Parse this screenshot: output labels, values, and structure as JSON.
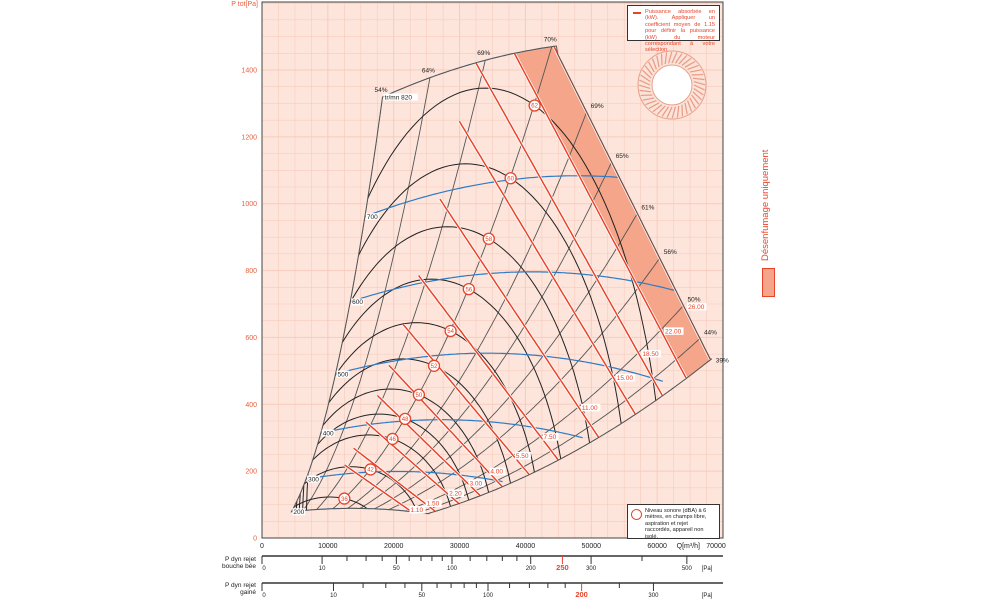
{
  "chart_data": {
    "type": "line",
    "ylabel": "P tot[Pa]",
    "xlabel": "Q[m³/h]",
    "xlim": [
      0,
      70000
    ],
    "ylim": [
      0,
      1400
    ],
    "grid": true,
    "x_ticks": [
      0,
      10000,
      20000,
      30000,
      40000,
      50000,
      60000,
      70000
    ],
    "x_tick_labels": [
      "0",
      "10000",
      "20000",
      "30000",
      "40000",
      "50000",
      "60000",
      "70000"
    ],
    "y_ticks": [
      0,
      200,
      400,
      600,
      800,
      1000,
      1200,
      1400
    ],
    "y_tick_labels": [
      "0",
      "200",
      "400",
      "600",
      "800",
      "1000",
      "1200",
      "1400"
    ],
    "speed_curves": [
      {
        "rpm": 200,
        "label": "200"
      },
      {
        "rpm": 300,
        "label": "300"
      },
      {
        "rpm": 400,
        "label": "400"
      },
      {
        "rpm": 500,
        "label": "500"
      },
      {
        "rpm": 600,
        "label": "600"
      },
      {
        "rpm": 700,
        "label": "700"
      },
      {
        "rpm": 820,
        "label": "tr/mn 820"
      }
    ],
    "efficiency_lines": [
      {
        "label": "54%",
        "q": 18300,
        "edge": "left"
      },
      {
        "label": "64%",
        "q": 25500,
        "edge": "top"
      },
      {
        "label": "69%",
        "q": 33900,
        "edge": "top"
      },
      {
        "label": "70%",
        "q": 44000,
        "edge": "top"
      },
      {
        "label": "69%",
        "q": 49300,
        "edge": "right"
      },
      {
        "label": "65%",
        "q": 53100,
        "edge": "right"
      },
      {
        "label": "61%",
        "q": 57000,
        "edge": "right"
      },
      {
        "label": "56%",
        "q": 60400,
        "edge": "right"
      },
      {
        "label": "50%",
        "q": 64000,
        "edge": "right"
      },
      {
        "label": "44%",
        "q": 66500,
        "edge": "right"
      },
      {
        "label": "39%",
        "q": 68300,
        "edge": "bottom"
      }
    ],
    "power_lines_kw": [
      {
        "kw": 1.1,
        "label": "1.10"
      },
      {
        "kw": 1.5,
        "label": "1.50"
      },
      {
        "kw": 2.2,
        "label": "2.20"
      },
      {
        "kw": 3.0,
        "label": "3.00"
      },
      {
        "kw": 4.0,
        "label": "4.00"
      },
      {
        "kw": 5.5,
        "label": "5.50"
      },
      {
        "kw": 7.5,
        "label": "7.50"
      },
      {
        "kw": 11.0,
        "label": "11.00"
      },
      {
        "kw": 15.0,
        "label": "15.00"
      },
      {
        "kw": 18.5,
        "label": "18.50"
      },
      {
        "kw": 22.0,
        "label": "22.00"
      },
      {
        "kw": 26.0,
        "label": "26.00"
      }
    ],
    "sound_levels_dba": [
      {
        "dba": 36,
        "label": "36"
      },
      {
        "dba": 42,
        "label": "42"
      },
      {
        "dba": 46,
        "label": "46"
      },
      {
        "dba": 48,
        "label": "48"
      },
      {
        "dba": 50,
        "label": "50"
      },
      {
        "dba": 52,
        "label": "52"
      },
      {
        "dba": 54,
        "label": "54"
      },
      {
        "dba": 56,
        "label": "56"
      },
      {
        "dba": 58,
        "label": "58"
      },
      {
        "dba": 60,
        "label": "60"
      },
      {
        "dba": 62,
        "label": "62"
      }
    ],
    "smoke_only_band_kw": [
      22,
      26
    ],
    "colors": {
      "background": "#fde5dc",
      "grid": "#f7cbbd",
      "power_line": "#e8442a",
      "speed_curve": "#2e7bc4",
      "sound_curve": "#222222",
      "system_curve": "#555555",
      "band": "#f4a58a",
      "axis_label": "#e8603c"
    }
  },
  "legend_power": "Puissance absorbée en (kW). Appliquer un coefficient moyen de 1.15 pour définir la puissance (kW) du moteur correspondant à votre sélection",
  "legend_sound": "Niveau sonore (dBA) à 6 mètres, en champs libre, aspiration et rejet raccordés, appareil non isolé.",
  "side_label": "Désenfumage uniquement",
  "scales": [
    {
      "label_line1": "P dyn rejet",
      "label_line2": "bouche bée",
      "ticks": [
        0,
        10,
        20,
        30,
        40,
        50,
        60,
        70,
        80,
        90,
        100,
        120,
        140,
        160,
        180,
        200,
        250,
        300,
        400,
        500
      ],
      "tick_labels": [
        "0",
        "10",
        "50",
        "100",
        "200",
        "250",
        "300",
        "500"
      ],
      "highlight": "250",
      "unit": "[Pa]"
    },
    {
      "label_line1": "P dyn rejet",
      "label_line2": "gainé",
      "ticks": [
        0,
        10,
        20,
        30,
        40,
        50,
        60,
        70,
        80,
        90,
        100,
        120,
        140,
        160,
        180,
        200,
        250,
        300
      ],
      "tick_labels": [
        "0",
        "10",
        "50",
        "100",
        "200",
        "300"
      ],
      "highlight": "200",
      "unit": "[Pa]"
    }
  ]
}
